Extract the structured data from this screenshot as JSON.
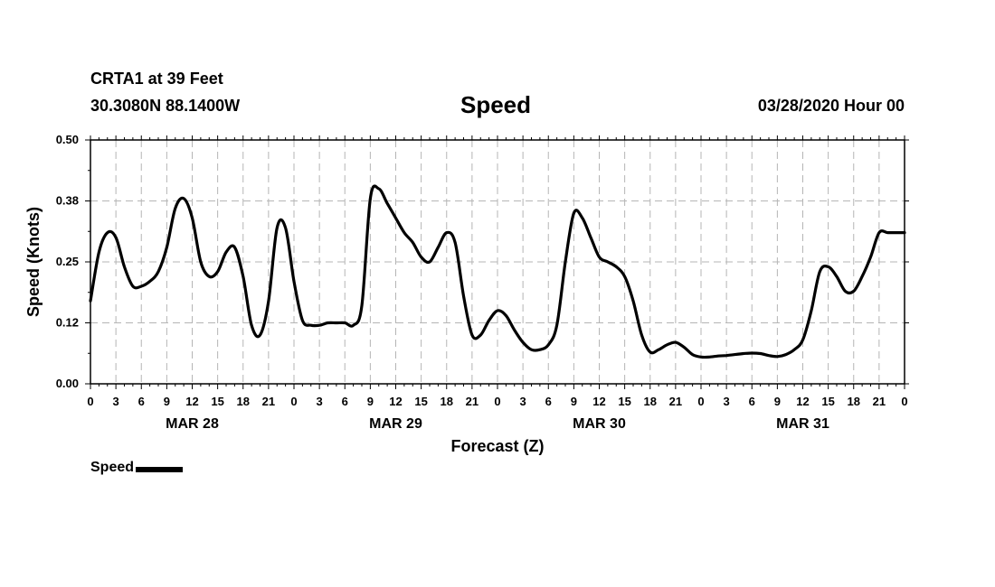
{
  "header": {
    "station": "CRTA1 at 39 Feet",
    "location": "30.3080N 88.1400W",
    "datetime": "03/28/2020 Hour 00"
  },
  "chart_data": {
    "type": "line",
    "title": "Speed",
    "xlabel": "Forecast (Z)",
    "ylabel": "Speed (Knots)",
    "ylim": [
      0,
      0.5
    ],
    "yticks": [
      "0.00",
      "0.12",
      "0.25",
      "0.38",
      "0.50"
    ],
    "grid": true,
    "legend_position": "bottom-left",
    "x_unit": "forecast hour",
    "xlim": [
      0,
      96
    ],
    "xtick_labels": [
      "0",
      "3",
      "6",
      "9",
      "12",
      "15",
      "18",
      "21",
      "0",
      "3",
      "6",
      "9",
      "12",
      "15",
      "18",
      "21",
      "0",
      "3",
      "6",
      "9",
      "12",
      "15",
      "18",
      "21",
      "0",
      "3",
      "6",
      "9",
      "12",
      "15",
      "18",
      "21",
      "0"
    ],
    "day_labels": [
      {
        "label": "MAR 28",
        "hour": 12
      },
      {
        "label": "MAR 29",
        "hour": 36
      },
      {
        "label": "MAR 30",
        "hour": 60
      },
      {
        "label": "MAR 31",
        "hour": 84
      }
    ],
    "series": [
      {
        "name": "Speed",
        "color": "#000000",
        "x": [
          0,
          1,
          2,
          3,
          4,
          5,
          6,
          7,
          8,
          9,
          10,
          11,
          12,
          13,
          14,
          15,
          16,
          17,
          18,
          19,
          20,
          21,
          22,
          23,
          24,
          25,
          26,
          27,
          28,
          29,
          30,
          31,
          32,
          33,
          34,
          35,
          36,
          37,
          38,
          39,
          40,
          41,
          42,
          43,
          44,
          45,
          46,
          47,
          48,
          49,
          50,
          51,
          52,
          53,
          54,
          55,
          56,
          57,
          58,
          59,
          60,
          61,
          62,
          63,
          64,
          65,
          66,
          67,
          68,
          69,
          70,
          71,
          72,
          73,
          74,
          75,
          76,
          77,
          78,
          79,
          80,
          81,
          82,
          83,
          84,
          85,
          86,
          87,
          88,
          89,
          90,
          91,
          92,
          93,
          94,
          95,
          96
        ],
        "values": [
          0.17,
          0.27,
          0.31,
          0.3,
          0.24,
          0.2,
          0.2,
          0.21,
          0.23,
          0.28,
          0.36,
          0.38,
          0.34,
          0.25,
          0.22,
          0.23,
          0.27,
          0.28,
          0.22,
          0.12,
          0.1,
          0.17,
          0.32,
          0.32,
          0.21,
          0.13,
          0.12,
          0.12,
          0.125,
          0.125,
          0.125,
          0.12,
          0.16,
          0.38,
          0.4,
          0.37,
          0.34,
          0.31,
          0.29,
          0.26,
          0.25,
          0.28,
          0.31,
          0.29,
          0.18,
          0.1,
          0.1,
          0.13,
          0.15,
          0.14,
          0.11,
          0.085,
          0.07,
          0.07,
          0.08,
          0.12,
          0.25,
          0.35,
          0.34,
          0.3,
          0.26,
          0.25,
          0.24,
          0.22,
          0.17,
          0.1,
          0.065,
          0.07,
          0.08,
          0.085,
          0.075,
          0.06,
          0.055,
          0.055,
          0.057,
          0.058,
          0.06,
          0.062,
          0.063,
          0.062,
          0.058,
          0.056,
          0.06,
          0.07,
          0.09,
          0.15,
          0.23,
          0.24,
          0.22,
          0.19,
          0.19,
          0.22,
          0.26,
          0.31,
          0.31,
          0.31,
          0.31
        ]
      }
    ]
  },
  "legend": {
    "label": "Speed"
  }
}
